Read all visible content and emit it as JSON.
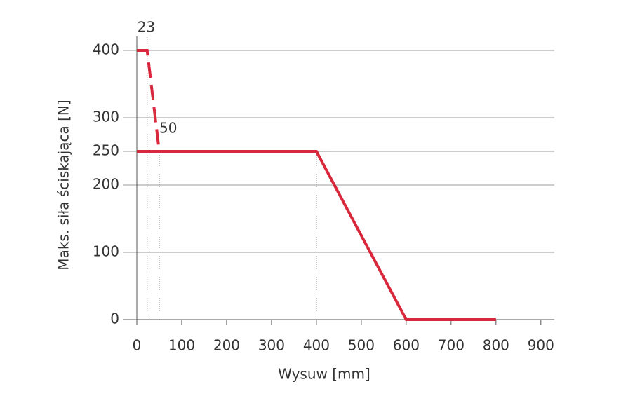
{
  "chart_data": {
    "type": "line",
    "xlabel": "Wysuw [mm]",
    "ylabel": "Maks. siła ściskająca [N]",
    "xlim": [
      0,
      930
    ],
    "ylim": [
      0,
      400
    ],
    "xticks": [
      0,
      100,
      200,
      300,
      400,
      500,
      600,
      700,
      800,
      900
    ],
    "yticks": [
      0,
      100,
      200,
      250,
      300,
      400
    ],
    "grid": true,
    "series": [
      {
        "x": [
          0,
          400,
          600,
          800
        ],
        "values": [
          250,
          250,
          0,
          0
        ],
        "color": "#d8283c",
        "style": "solid"
      },
      {
        "x": [
          0,
          23,
          50
        ],
        "values": [
          400,
          400,
          250
        ],
        "color": "#d8283c",
        "style": "dashed"
      }
    ],
    "references": [
      {
        "x": 23,
        "y": 400,
        "label": "23"
      },
      {
        "x": 50,
        "y": 250,
        "label": "50"
      },
      {
        "x": 400,
        "y": 250
      }
    ]
  }
}
